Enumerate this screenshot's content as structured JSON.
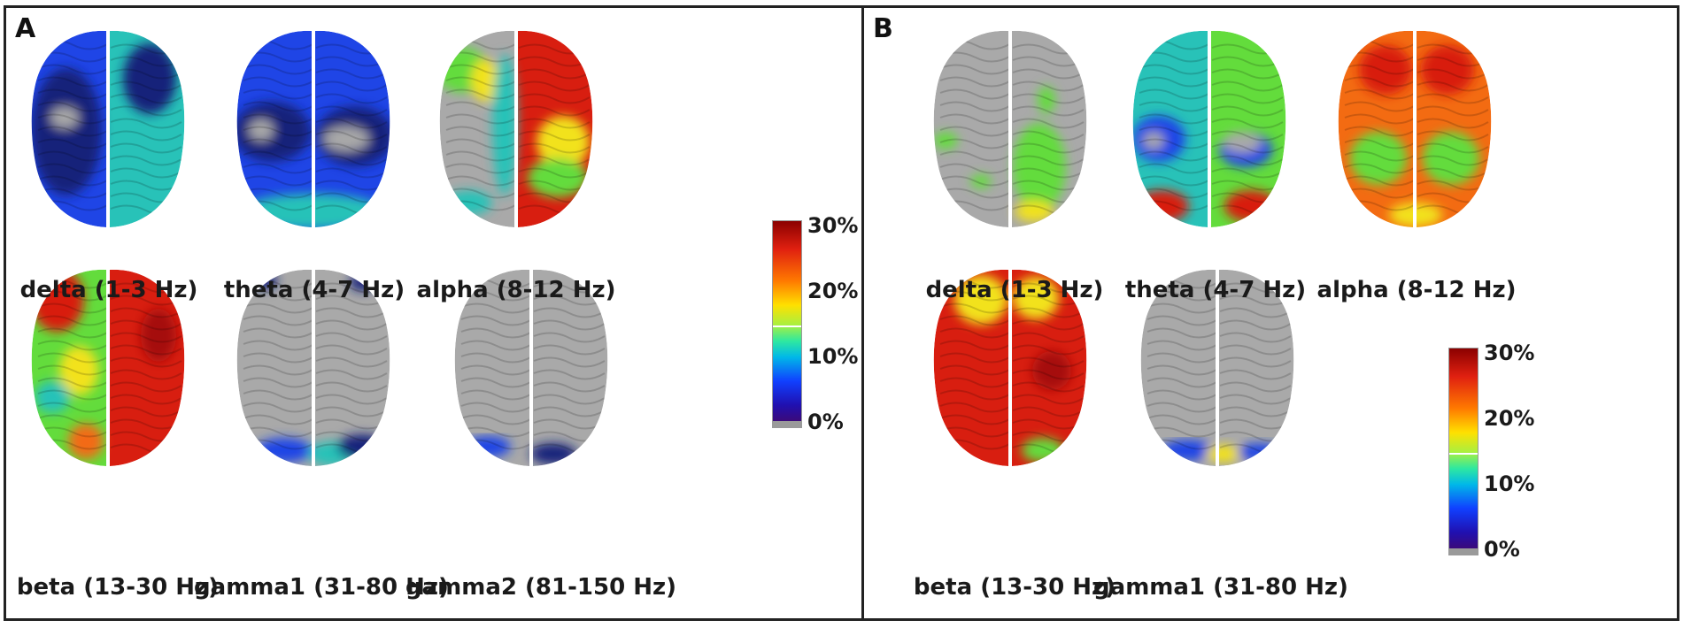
{
  "panel_a": {
    "letter": "A",
    "brains": [
      {
        "label": "delta (1-3 Hz)",
        "map": "delta-a"
      },
      {
        "label": "theta (4-7 Hz)",
        "map": "theta-a"
      },
      {
        "label": "alpha (8-12 Hz)",
        "map": "alpha-a"
      },
      {
        "label": "beta (13-30 Hz)",
        "map": "beta-a"
      },
      {
        "label": "gamma1 (31-80 Hz)",
        "map": "gamma1-a"
      },
      {
        "label": "gamma2 (81-150 Hz)",
        "map": "gamma2-a"
      }
    ],
    "colorbar": {
      "max": "30%",
      "mid": "20%",
      "low": "10%",
      "min": "0%"
    }
  },
  "panel_b": {
    "letter": "B",
    "brains": [
      {
        "label": "delta (1-3 Hz)",
        "map": "delta-b"
      },
      {
        "label": "theta (4-7 Hz)",
        "map": "theta-b"
      },
      {
        "label": "alpha (8-12 Hz)",
        "map": "alpha-b"
      },
      {
        "label": "beta (13-30 Hz)",
        "map": "beta-b"
      },
      {
        "label": "gamma1 (31-80 Hz)",
        "map": "gamma1-b"
      }
    ],
    "colorbar": {
      "max": "30%",
      "mid": "20%",
      "low": "10%",
      "min": "0%"
    }
  },
  "colors": {
    "gray": "#a9a9a9",
    "red": "#d81e10",
    "dark_red": "#a50f0f",
    "orange": "#f36b12",
    "yellow": "#f2e21e",
    "green": "#63dc3c",
    "cyan": "#28c2b8",
    "blue": "#1f45e6",
    "navy": "#16237a"
  }
}
